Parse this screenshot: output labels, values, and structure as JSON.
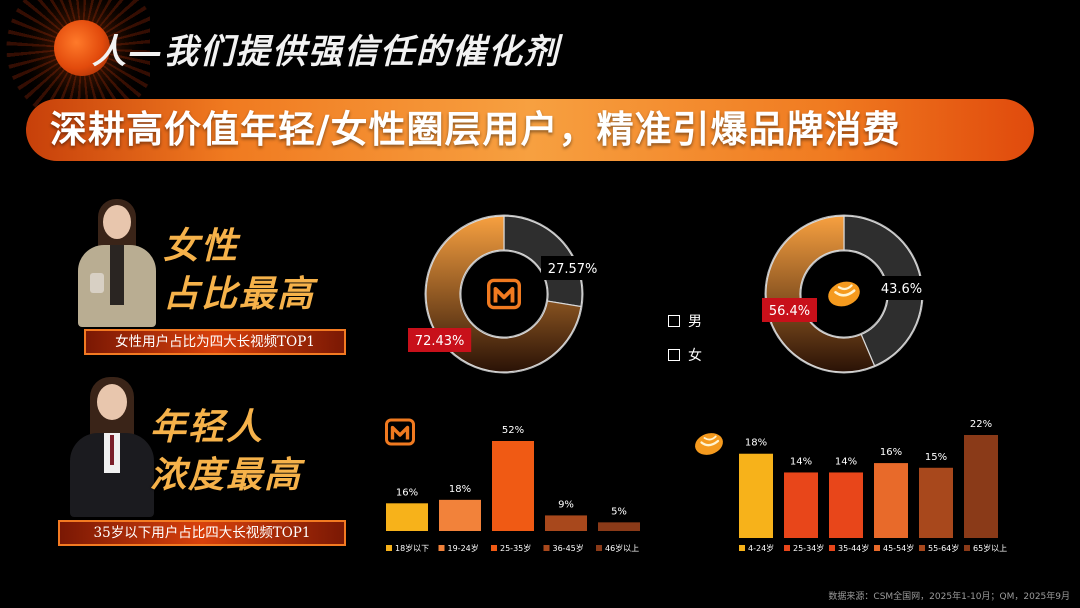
{
  "header": {
    "slogan": "人—我们提供强信任的催化剂",
    "headline": "深耕高价值年轻/女性圈层用户，精准引爆品牌消费"
  },
  "sections": {
    "female": {
      "title_line1": "女性",
      "title_line2": "占比最高",
      "caption": "女性用户占比为四大长视频TOP1"
    },
    "young": {
      "title_line1": "年轻人",
      "title_line2": "浓度最高",
      "caption": "35岁以下用户占比四大长视频TOP1"
    }
  },
  "legend": {
    "male": "男",
    "female": "女"
  },
  "colors": {
    "accent": "#f07a20",
    "male_ring": "#2e2e2e",
    "female_ring_start": "#f7a040",
    "female_ring_end": "#2a1206",
    "label_red": "#c8101a"
  },
  "chart_data": [
    {
      "type": "pie",
      "variant": "donut",
      "logo": "mango-tv-logo",
      "slices": [
        {
          "name": "男",
          "value": 27.57,
          "label": "27.57%"
        },
        {
          "name": "女",
          "value": 72.43,
          "label": "72.43%"
        }
      ]
    },
    {
      "type": "pie",
      "variant": "donut",
      "logo": "bean-logo",
      "slices": [
        {
          "name": "男",
          "value": 43.6,
          "label": "43.6%"
        },
        {
          "name": "女",
          "value": 56.4,
          "label": "56.4%"
        }
      ]
    },
    {
      "type": "bar",
      "logo": "mango-tv-logo",
      "categories": [
        "18岁以下",
        "19-24岁",
        "25-35岁",
        "36-45岁",
        "46岁以上"
      ],
      "values": [
        16,
        18,
        52,
        9,
        5
      ],
      "labels": [
        "16%",
        "18%",
        "52%",
        "9%",
        "5%"
      ],
      "colors": [
        "#f7b21a",
        "#f2823a",
        "#f05a14",
        "#a8481c",
        "#8a3a18"
      ],
      "ylim": [
        0,
        52
      ]
    },
    {
      "type": "bar",
      "logo": "bean-logo",
      "categories": [
        "4-24岁",
        "25-34岁",
        "35-44岁",
        "45-54岁",
        "55-64岁",
        "65岁以上"
      ],
      "values": [
        18,
        14,
        14,
        16,
        15,
        22
      ],
      "labels": [
        "18%",
        "14%",
        "14%",
        "16%",
        "15%",
        "22%"
      ],
      "colors": [
        "#f7b21a",
        "#e8461a",
        "#e8461a",
        "#e86a2a",
        "#a8481c",
        "#8a3a18"
      ],
      "ylim": [
        0,
        22
      ]
    }
  ],
  "source": "数据来源：CSM全国网，2025年1-10月；QM，2025年9月"
}
